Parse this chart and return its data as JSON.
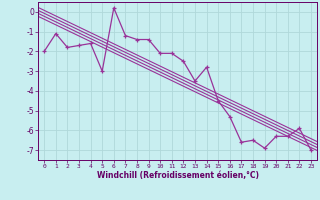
{
  "xlabel": "Windchill (Refroidissement éolien,°C)",
  "background_color": "#c8eef0",
  "grid_color": "#b0d8da",
  "line_color": "#993399",
  "x_values": [
    0,
    1,
    2,
    3,
    4,
    5,
    6,
    7,
    8,
    9,
    10,
    11,
    12,
    13,
    14,
    15,
    16,
    17,
    18,
    19,
    20,
    21,
    22,
    23
  ],
  "y_main": [
    -2.0,
    -1.1,
    -1.8,
    -1.7,
    -1.6,
    -3.0,
    0.2,
    -1.2,
    -1.4,
    -1.4,
    -2.1,
    -2.1,
    -2.5,
    -3.5,
    -2.8,
    -4.5,
    -5.3,
    -6.6,
    -6.5,
    -6.9,
    -6.3,
    -6.3,
    -5.9,
    -7.0
  ],
  "ylim": [
    -7.5,
    0.5
  ],
  "yticks": [
    0,
    -1,
    -2,
    -3,
    -4,
    -5,
    -6,
    -7
  ],
  "xlim": [
    -0.5,
    23.5
  ],
  "reg_offsets": [
    0.0,
    0.15,
    0.3,
    -0.15
  ]
}
